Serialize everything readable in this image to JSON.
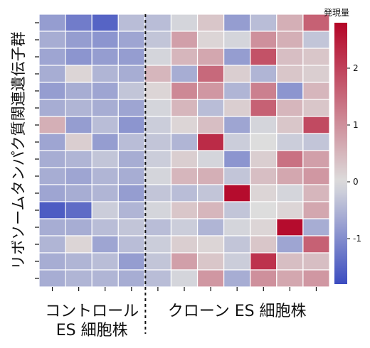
{
  "chart_data": {
    "type": "heatmap",
    "title": "",
    "ylabel": "リボソームタンパク質関連遺伝子群",
    "group_labels": [
      {
        "lines": [
          "コントロール",
          "ES 細胞株"
        ],
        "columns": 4
      },
      {
        "lines": [
          "クローン ES 細胞株"
        ],
        "columns": 7
      }
    ],
    "colorbar": {
      "title": "発現量",
      "range": [
        -1.8,
        2.8
      ],
      "ticks": [
        -1,
        0,
        1,
        2
      ],
      "colormap": "coolwarm",
      "low_color": "#3b4cc0",
      "mid_color": "#dddddd",
      "high_color": "#b40426"
    },
    "grid": "white lines between cells",
    "values": [
      [
        -0.8,
        -1.2,
        -1.5,
        -0.4,
        -0.4,
        -0.1,
        0.3,
        -0.8,
        -0.4,
        0.6,
        1.6
      ],
      [
        -0.6,
        -0.8,
        -0.9,
        -0.7,
        -0.3,
        0.8,
        0.1,
        -0.1,
        1.0,
        0.6,
        -0.3
      ],
      [
        -0.7,
        -0.9,
        -0.8,
        -0.8,
        -0.1,
        0.5,
        0.7,
        -0.8,
        1.8,
        0.4,
        0.3
      ],
      [
        -0.6,
        0.1,
        -0.5,
        -0.6,
        0.5,
        -0.6,
        1.5,
        0.2,
        -0.5,
        0.3,
        0.2
      ],
      [
        -0.8,
        -0.6,
        -0.7,
        -0.3,
        0.1,
        1.1,
        0.9,
        -0.5,
        1.2,
        -0.9,
        0.5
      ],
      [
        -0.6,
        -0.5,
        -0.6,
        -0.7,
        -0.1,
        0.5,
        -0.4,
        0.2,
        1.6,
        0.5,
        0.3
      ],
      [
        0.6,
        -0.8,
        -0.4,
        -0.9,
        -0.2,
        0.1,
        0.4,
        -0.7,
        -0.1,
        0.3,
        1.9
      ],
      [
        -0.7,
        0.2,
        -0.8,
        -0.4,
        -0.3,
        -0.5,
        2.3,
        -0.2,
        0.0,
        -0.2,
        -0.3
      ],
      [
        -0.6,
        -0.5,
        -0.3,
        -0.6,
        -0.2,
        0.2,
        -0.1,
        -0.9,
        0.2,
        1.4,
        0.8
      ],
      [
        -0.6,
        -0.7,
        -0.5,
        -0.6,
        -0.1,
        0.5,
        0.6,
        -0.3,
        0.4,
        0.7,
        0.9
      ],
      [
        -0.7,
        -0.6,
        -0.5,
        -0.8,
        -0.3,
        -0.4,
        -0.3,
        2.7,
        0.1,
        -0.1,
        0.5
      ],
      [
        -1.6,
        -1.4,
        -0.2,
        -0.5,
        -0.1,
        0.3,
        0.5,
        -0.3,
        0.0,
        0.1,
        0.7
      ],
      [
        -0.6,
        -0.6,
        -0.4,
        -0.3,
        -0.4,
        -0.2,
        -0.5,
        -0.1,
        0.1,
        2.7,
        -0.6
      ],
      [
        -0.5,
        0.1,
        -0.7,
        -0.4,
        -0.2,
        0.2,
        0.1,
        -0.3,
        0.3,
        -0.7,
        1.6
      ],
      [
        -0.6,
        -0.5,
        -0.4,
        -0.8,
        -0.3,
        0.8,
        0.3,
        -0.2,
        2.2,
        0.4,
        0.4
      ],
      [
        -0.6,
        -0.5,
        -0.5,
        -0.6,
        -0.4,
        -0.1,
        0.9,
        -0.6,
        1.0,
        0.7,
        0.9
      ]
    ]
  }
}
